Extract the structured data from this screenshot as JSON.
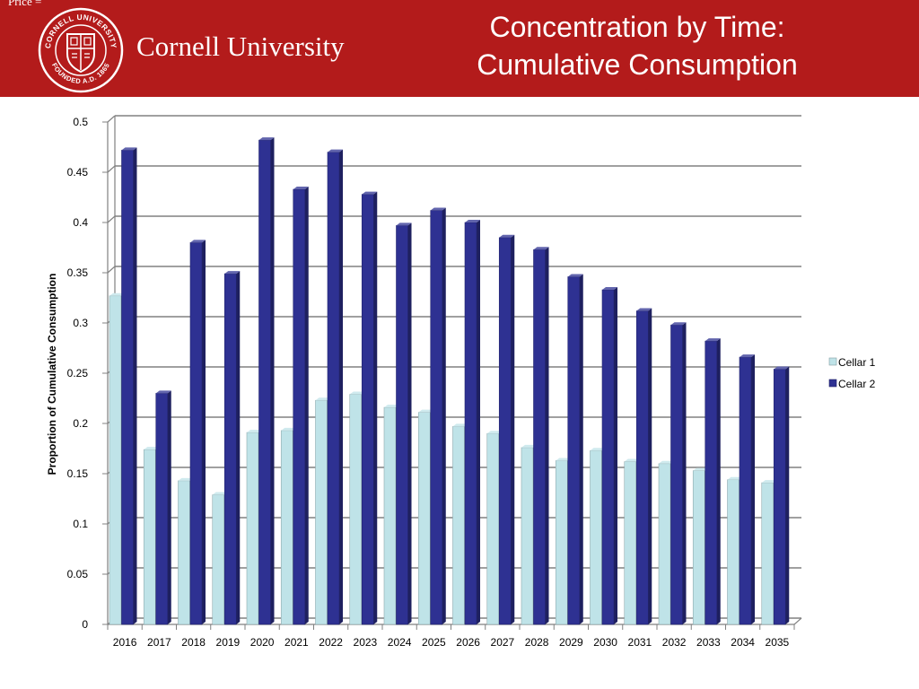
{
  "header": {
    "corner_text": "Price =",
    "university_name": "Cornell University",
    "seal": {
      "ring_top": "CORNELL UNIVERSITY",
      "ring_bottom": "FOUNDED A.D. 1865"
    },
    "title_line1": "Concentration by Time:",
    "title_line2": "Cumulative Consumption",
    "background_color": "#b31b1b"
  },
  "chart_data": {
    "type": "bar",
    "title": "",
    "xlabel": "",
    "ylabel": "Proportion of Cumulative Consumption",
    "categories": [
      "2016",
      "2017",
      "2018",
      "2019",
      "2020",
      "2021",
      "2022",
      "2023",
      "2024",
      "2025",
      "2026",
      "2027",
      "2028",
      "2029",
      "2030",
      "2031",
      "2032",
      "2033",
      "2034",
      "2035"
    ],
    "series": [
      {
        "name": "Cellar 1",
        "color": "#bfe3e8",
        "values": [
          0.327,
          0.174,
          0.143,
          0.129,
          0.191,
          0.193,
          0.223,
          0.229,
          0.216,
          0.211,
          0.197,
          0.19,
          0.176,
          0.163,
          0.173,
          0.162,
          0.16,
          0.153,
          0.144,
          0.141
        ]
      },
      {
        "name": "Cellar 2",
        "color": "#2e3192",
        "values": [
          0.472,
          0.23,
          0.38,
          0.349,
          0.482,
          0.433,
          0.47,
          0.428,
          0.397,
          0.412,
          0.4,
          0.385,
          0.373,
          0.346,
          0.333,
          0.312,
          0.298,
          0.282,
          0.266,
          0.254
        ]
      }
    ],
    "ylim": [
      0,
      0.5
    ],
    "yticks": [
      "0",
      "0.05",
      "0.1",
      "0.15",
      "0.2",
      "0.25",
      "0.3",
      "0.35",
      "0.4",
      "0.45",
      "0.5"
    ],
    "grid": true,
    "legend_position": "right"
  }
}
